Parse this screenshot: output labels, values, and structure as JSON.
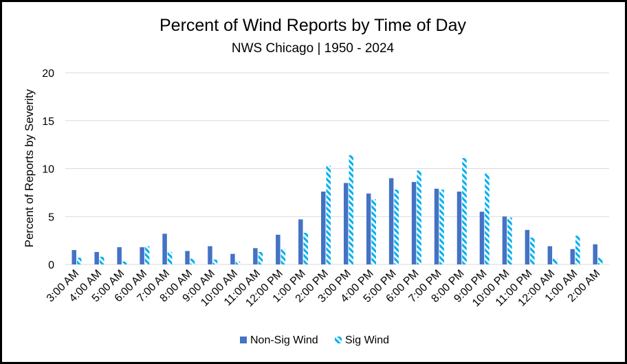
{
  "chart_data": {
    "type": "bar",
    "title": "Percent of Wind Reports by Time of Day",
    "subtitle": "NWS Chicago | 1950 - 2024",
    "xlabel": "",
    "ylabel": "Percent of Reports by Severity",
    "ylim": [
      0,
      20
    ],
    "yticks": [
      0,
      5,
      10,
      15,
      20
    ],
    "grid": true,
    "legend_position": "bottom",
    "categories": [
      "3:00 AM",
      "4:00 AM",
      "5:00 AM",
      "6:00 AM",
      "7:00 AM",
      "8:00 AM",
      "9:00 AM",
      "10:00 AM",
      "11:00 AM",
      "12:00 PM",
      "1:00 PM",
      "2:00 PM",
      "3:00 PM",
      "4:00 PM",
      "5:00 PM",
      "6:00 PM",
      "7:00 PM",
      "8:00 PM",
      "9:00 PM",
      "10:00 PM",
      "11:00 PM",
      "12:00 AM",
      "1:00 AM",
      "2:00 AM"
    ],
    "series": [
      {
        "name": "Non-Sig Wind",
        "color": "#4472c4",
        "pattern": "solid",
        "values": [
          1.5,
          1.3,
          1.8,
          1.8,
          3.2,
          1.4,
          1.9,
          1.1,
          1.7,
          3.1,
          4.7,
          7.6,
          8.5,
          7.4,
          9.0,
          8.6,
          7.9,
          7.6,
          5.5,
          5.0,
          3.6,
          1.9,
          1.6,
          2.1
        ]
      },
      {
        "name": "Sig Wind",
        "color": "#00b0f0",
        "pattern": "diagonal-dashes",
        "values": [
          0.7,
          0.8,
          0.3,
          1.9,
          1.3,
          0.6,
          0.5,
          0.3,
          1.3,
          1.6,
          3.3,
          10.3,
          11.4,
          6.8,
          7.8,
          9.8,
          7.8,
          11.1,
          9.5,
          4.9,
          2.8,
          0.6,
          3.0,
          0.7
        ]
      }
    ]
  }
}
